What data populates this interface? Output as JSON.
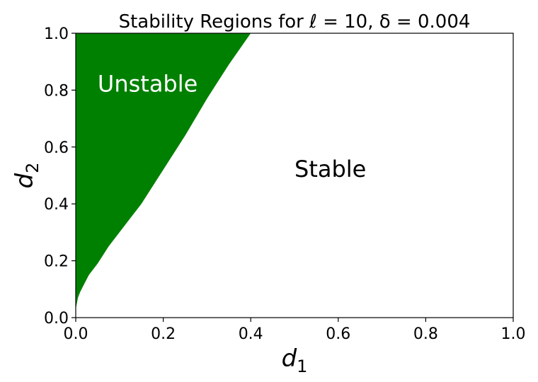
{
  "chart_data": {
    "type": "area",
    "title": "Stability Regions for ℓ = 10, δ = 0.004",
    "xlabel": {
      "base": "d",
      "sub": "1"
    },
    "ylabel": {
      "base": "d",
      "sub": "2"
    },
    "xlim": [
      0.0,
      1.0
    ],
    "ylim": [
      0.0,
      1.0
    ],
    "xticks": [
      "0.0",
      "0.2",
      "0.4",
      "0.6",
      "0.8",
      "1.0"
    ],
    "yticks": [
      "0.0",
      "0.2",
      "0.4",
      "0.6",
      "0.8",
      "1.0"
    ],
    "grid": false,
    "regions": [
      {
        "name": "Unstable",
        "color": "#008000",
        "boundary": {
          "x": [
            0.0,
            0.005,
            0.01,
            0.02,
            0.03,
            0.05,
            0.075,
            0.1,
            0.125,
            0.15,
            0.2,
            0.25,
            0.3,
            0.35,
            0.4
          ],
          "y": [
            0.03,
            0.07,
            0.09,
            0.12,
            0.15,
            0.19,
            0.25,
            0.3,
            0.35,
            0.4,
            0.52,
            0.64,
            0.77,
            0.89,
            1.0
          ]
        }
      },
      {
        "name": "Stable",
        "color": "#ffffff"
      }
    ],
    "annotations": [
      {
        "text": "Unstable",
        "x": 0.05,
        "y": 0.825,
        "color": "#ffffff"
      },
      {
        "text": "Stable",
        "x": 0.5,
        "y": 0.525,
        "color": "#000000"
      }
    ]
  }
}
